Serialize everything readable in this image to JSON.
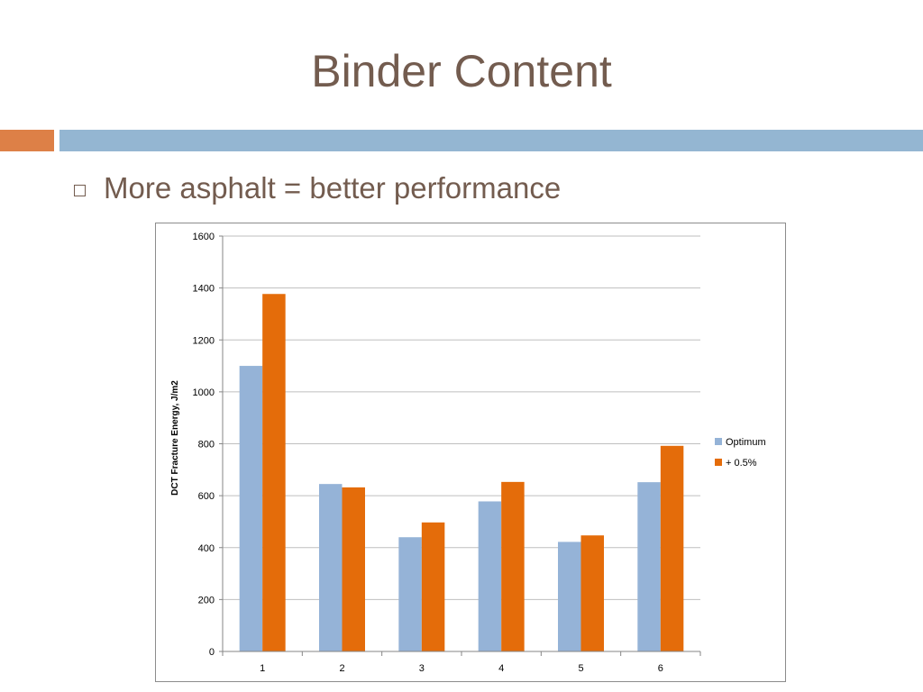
{
  "slide": {
    "title": "Binder Content",
    "bullet": "More asphalt = better performance"
  },
  "colors": {
    "title_text": "#735c4f",
    "accent_orange": "#dd8047",
    "accent_blue": "#94b6d2",
    "series_optimum": "#95b3d7",
    "series_plus": "#e46c0a"
  },
  "chart_data": {
    "type": "bar",
    "categories": [
      "1",
      "2",
      "3",
      "4",
      "5",
      "6"
    ],
    "series": [
      {
        "name": "Optimum",
        "values": [
          1100,
          645,
          440,
          578,
          422,
          652
        ]
      },
      {
        "name": "+ 0.5%",
        "values": [
          1377,
          632,
          497,
          653,
          447,
          792
        ]
      }
    ],
    "ylabel": "DCT Fracture Energy, J/m2",
    "ylim": [
      0,
      1600
    ],
    "yticks": [
      0,
      200,
      400,
      600,
      800,
      1000,
      1200,
      1400,
      1600
    ],
    "grid": true,
    "legend": "right"
  }
}
